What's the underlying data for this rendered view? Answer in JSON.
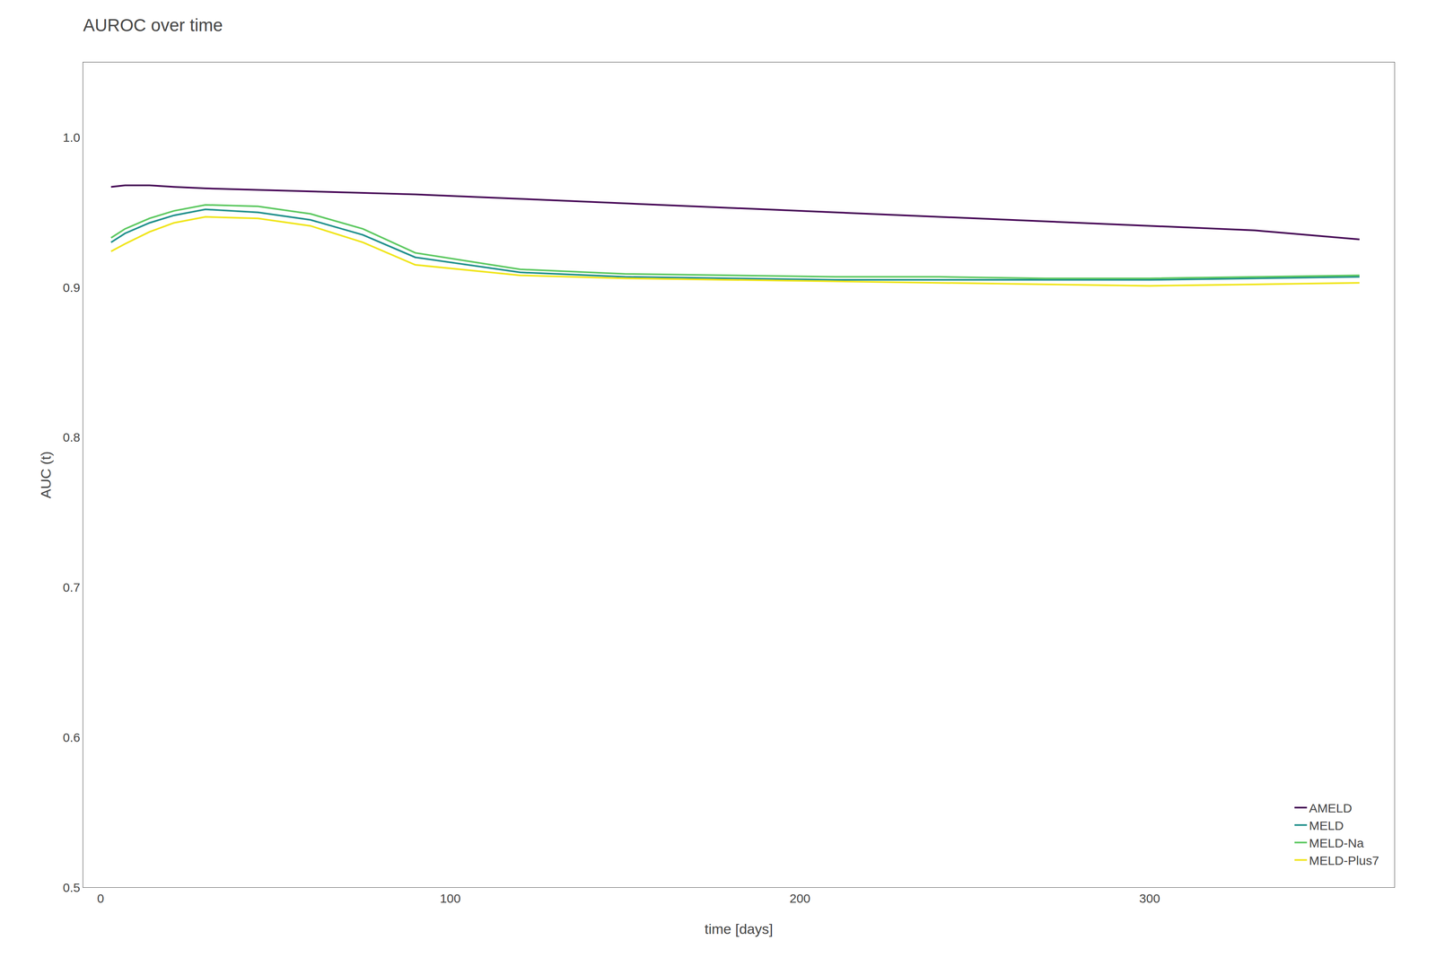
{
  "chart_data": {
    "type": "line",
    "title": "AUROC over time",
    "xlabel": "time [days]",
    "ylabel": "AUC (t)",
    "x": [
      3,
      7,
      14,
      21,
      30,
      45,
      60,
      75,
      90,
      120,
      150,
      180,
      210,
      240,
      270,
      300,
      330,
      360
    ],
    "series": [
      {
        "name": "AMELD",
        "color": "#440154",
        "values": [
          0.967,
          0.968,
          0.968,
          0.967,
          0.966,
          0.965,
          0.964,
          0.963,
          0.962,
          0.959,
          0.956,
          0.953,
          0.95,
          0.947,
          0.944,
          0.941,
          0.938,
          0.932
        ]
      },
      {
        "name": "MELD",
        "color": "#21908c",
        "values": [
          0.93,
          0.936,
          0.943,
          0.948,
          0.952,
          0.95,
          0.945,
          0.935,
          0.92,
          0.91,
          0.907,
          0.906,
          0.905,
          0.905,
          0.905,
          0.905,
          0.906,
          0.907
        ]
      },
      {
        "name": "MELD-Na",
        "color": "#5ec962",
        "values": [
          0.933,
          0.939,
          0.946,
          0.951,
          0.955,
          0.954,
          0.949,
          0.939,
          0.923,
          0.912,
          0.909,
          0.908,
          0.907,
          0.907,
          0.906,
          0.906,
          0.907,
          0.908
        ]
      },
      {
        "name": "MELD-Plus7",
        "color": "#f0e51c",
        "values": [
          0.924,
          0.929,
          0.937,
          0.943,
          0.947,
          0.946,
          0.941,
          0.93,
          0.915,
          0.908,
          0.906,
          0.905,
          0.904,
          0.903,
          0.902,
          0.901,
          0.902,
          0.903
        ]
      }
    ],
    "xlim": [
      -5,
      370
    ],
    "ylim": [
      0.5,
      1.05
    ],
    "xticks": [
      0,
      100,
      200,
      300
    ],
    "yticks": [
      0.5,
      0.6,
      0.7,
      0.8,
      0.9,
      {
        "value": 1.0,
        "label": "1.0"
      }
    ],
    "grid": false,
    "legend": "lower right"
  }
}
